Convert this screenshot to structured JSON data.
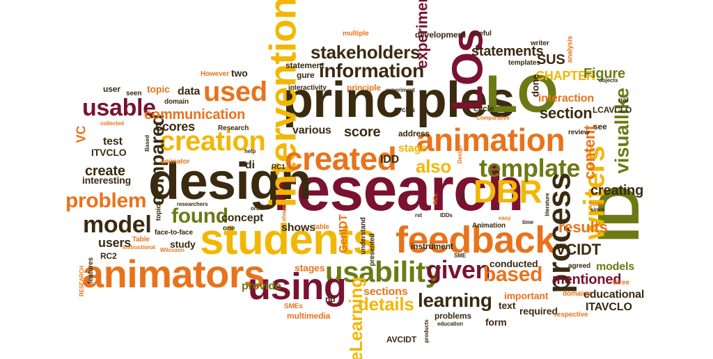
{
  "colors": {
    "dark_red": "#7a1230",
    "olive": "#6b7a14",
    "orange": "#e8731c",
    "gold": "#f2b705",
    "dark": "#3a2a10"
  },
  "words": [
    "research",
    "design",
    "principles",
    "students",
    "LOs",
    "LO",
    "ID",
    "feedback",
    "animators",
    "intervention",
    "animation",
    "created",
    "creation",
    "DBR",
    "template",
    "usability",
    "process",
    "using",
    "writers",
    "used",
    "usable",
    "information",
    "stakeholders",
    "model",
    "details",
    "given",
    "based",
    "problem",
    "found",
    "compared",
    "learning",
    "eLearning",
    "results",
    "visuallike",
    "content",
    "communication",
    "experiment",
    "statements",
    "section",
    "mentioned",
    "also",
    "score",
    "scores",
    "creating",
    "VCIDT",
    "CHAPTER",
    "Figure",
    "SUS",
    "models",
    "educational",
    "create",
    "concept",
    "provide",
    "shows",
    "users",
    "stage",
    "interaction",
    "test",
    "VC",
    "ITVCLO",
    "LCAVCLO",
    "ITAVCLO",
    "stages",
    "data",
    "topic",
    "user",
    "di",
    "various",
    "IDD",
    "problems",
    "AVCIDT",
    "GenIDT",
    "conducted",
    "form",
    "text",
    "required",
    "sections",
    "multimedia",
    "nd",
    "interesting",
    "study",
    "development",
    "statement",
    "gure",
    "two",
    "principle",
    "address",
    "interactivity",
    "cycle",
    "done",
    "review",
    "writer",
    "templates",
    "analysis",
    "useful",
    "multiple",
    "objects",
    "nal",
    "However",
    "seen",
    "domain",
    "Research",
    "collected",
    "Based",
    "help",
    "animator",
    "Comparative",
    "easy",
    "time",
    "literature",
    "since",
    "Stage",
    "agreed",
    "three",
    "respective",
    "domains",
    "important",
    "education",
    "products",
    "SMEs",
    "RESEARCH",
    "features",
    "RC2",
    "instructional",
    "Table",
    "topics",
    "face-to-face",
    "Wilcoxon",
    "one",
    "order",
    "researchers",
    "shown",
    "RC1",
    "table",
    "understand",
    "presented",
    "instrument",
    "Animation",
    "IDDs",
    "rst",
    "SME",
    "RC",
    "RCs",
    "Design",
    "see",
    "cycles",
    "experiment"
  ]
}
